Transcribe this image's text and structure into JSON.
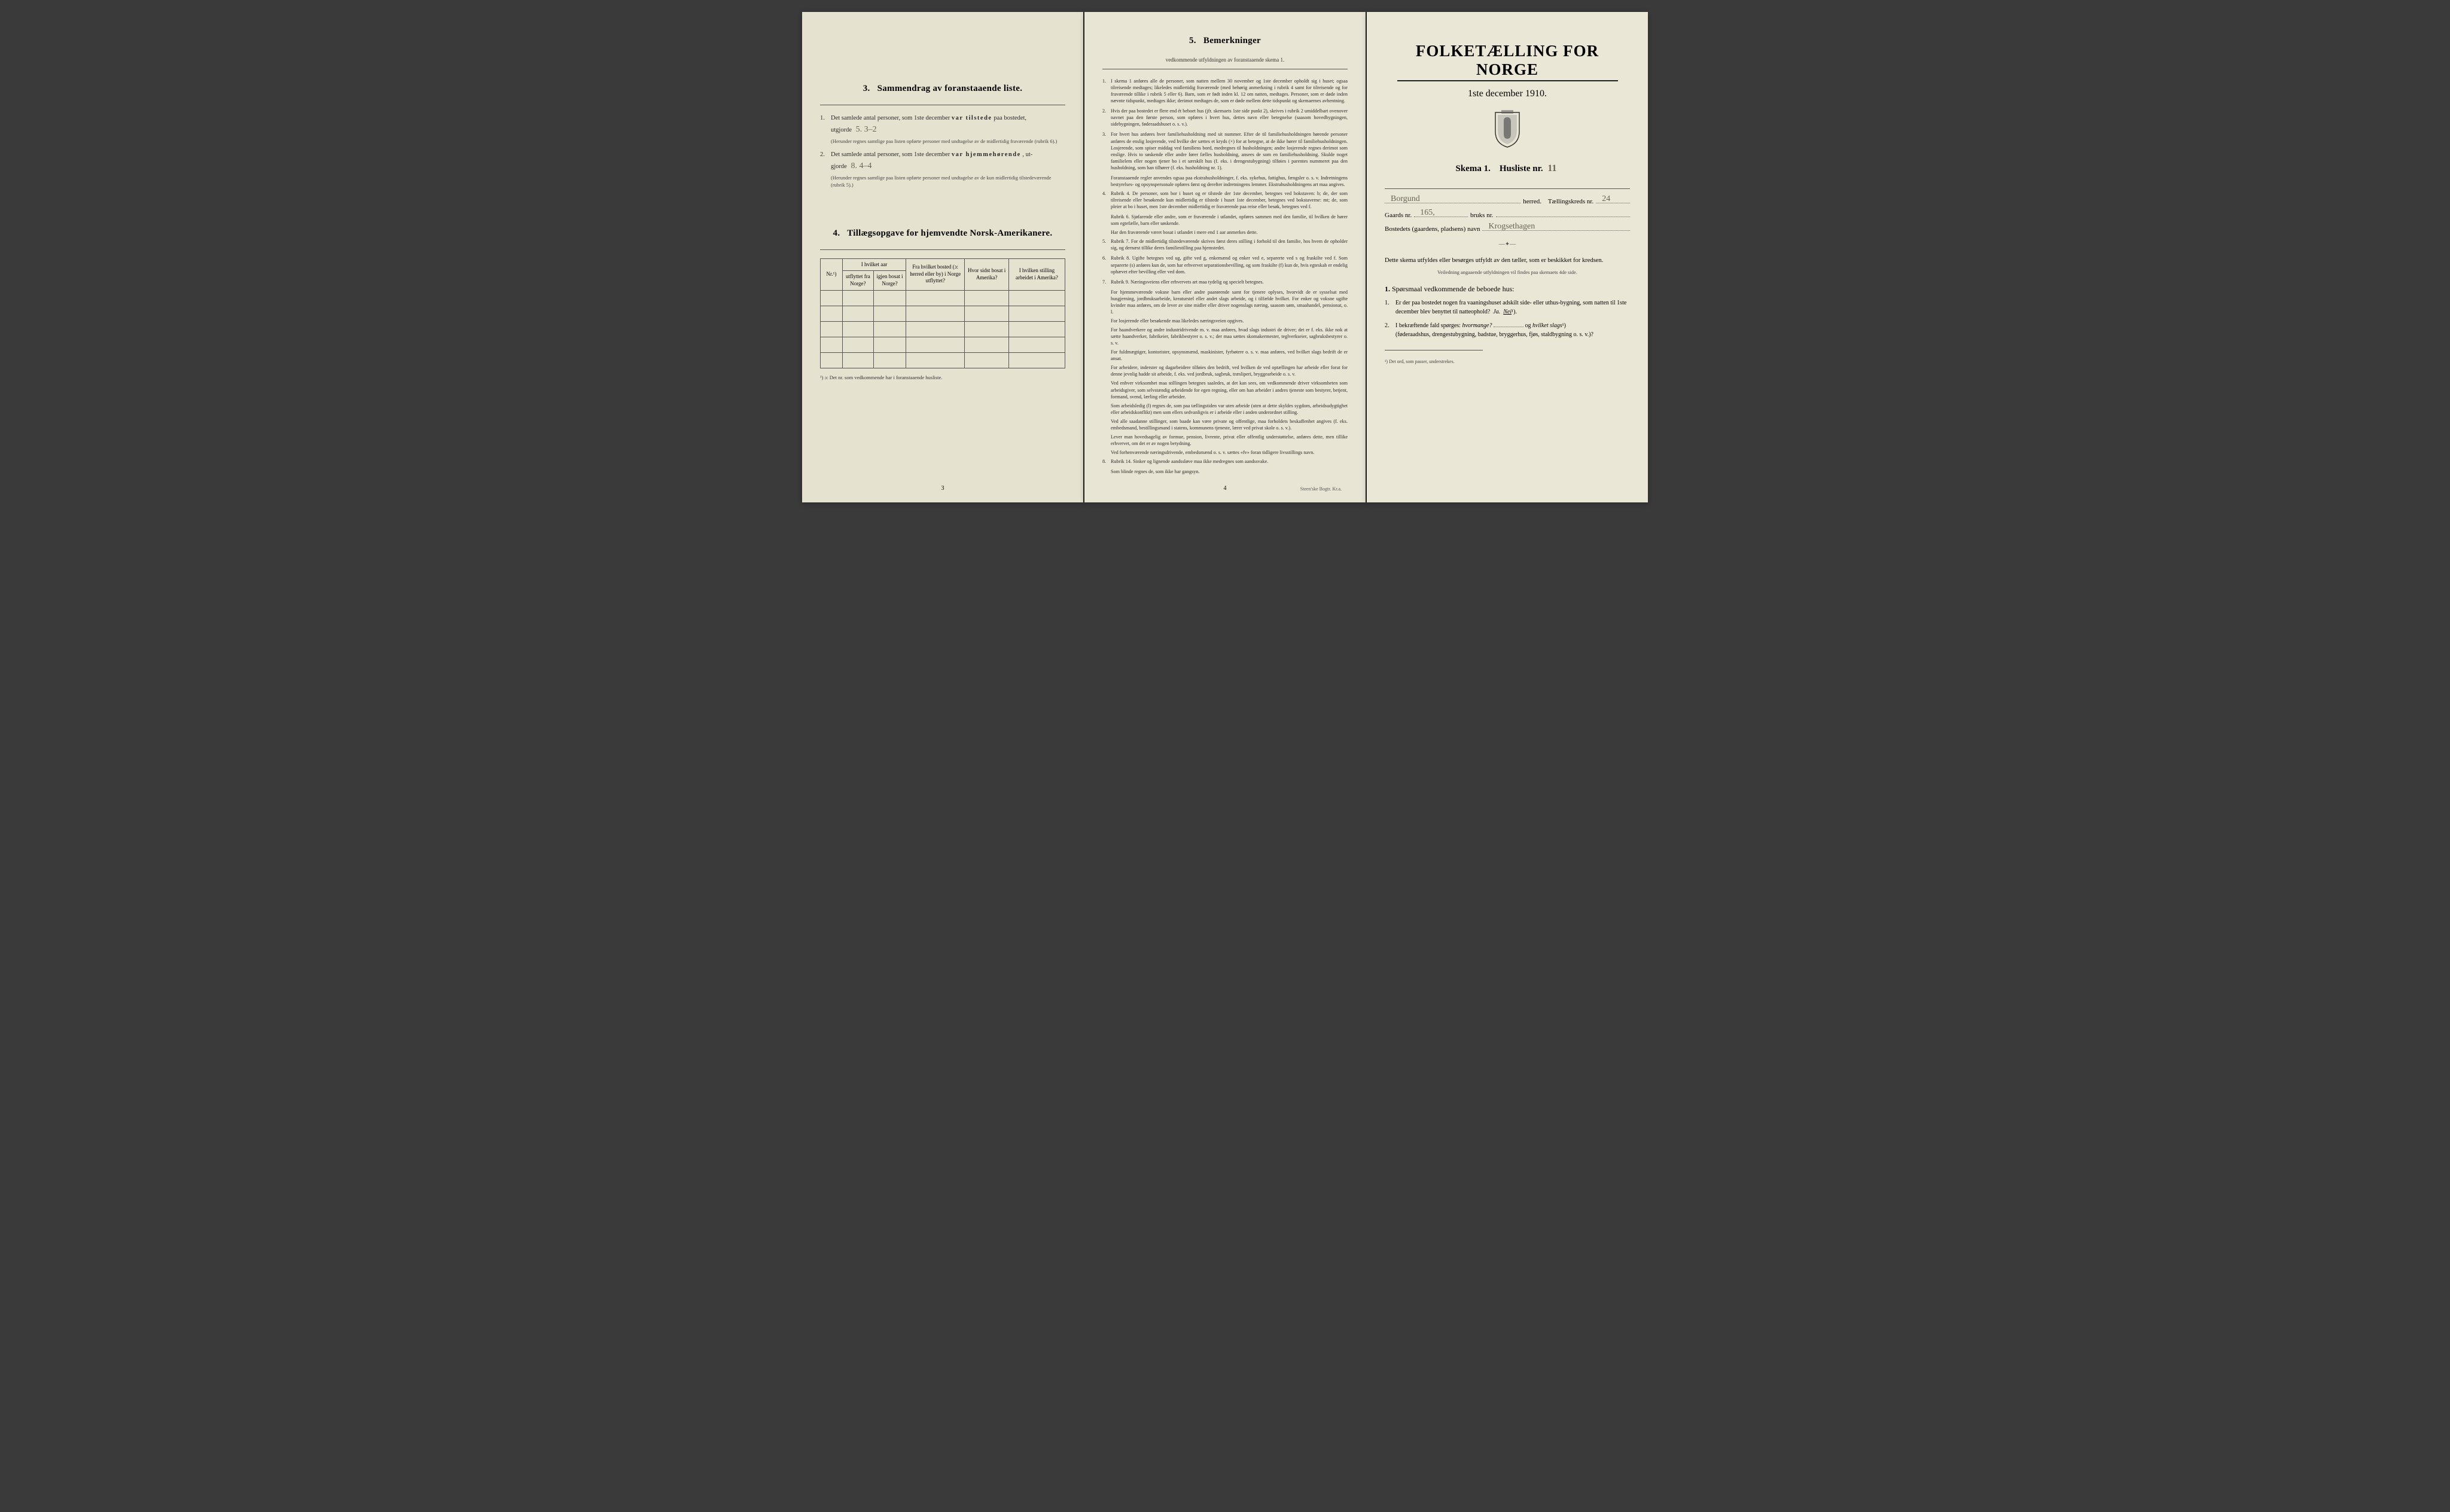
{
  "colors": {
    "paper": "#e8e4d4",
    "paper_mid": "#e9e5d5",
    "paper_right": "#ebe7d7",
    "ink": "#2a2a2a",
    "handwriting": "#6b6355",
    "rule": "#555555",
    "background": "#3a3a3a"
  },
  "typography": {
    "body_pt": 10.5,
    "fine_pt": 8.5,
    "remark_pt": 8.2,
    "title_pt": 27,
    "section_title_pt": 15
  },
  "left": {
    "section3": {
      "num": "3.",
      "title": "Sammendrag av foranstaaende liste.",
      "item1_num": "1.",
      "item1_text_a": "Det samlede antal personer, som 1ste december ",
      "item1_bold": "var tilstede",
      "item1_text_b": " paa bostedet,",
      "item1_text_c": "utgjorde ",
      "item1_fill": "5.   3–2",
      "item1_fine": "(Herunder regnes samtlige paa listen opførte personer med undtagelse av de midlertidig fraværende (rubrik 6).)",
      "item2_num": "2.",
      "item2_text_a": "Det samlede antal personer, som 1ste december ",
      "item2_bold": "var hjemmehørende",
      "item2_text_b": ", ut-",
      "item2_text_c": "gjorde ",
      "item2_fill": "8.   4–4",
      "item2_fine": "(Herunder regnes samtlige paa listen opførte personer med undtagelse av de kun midlertidig tilstedeværende (rubrik 5).)"
    },
    "section4": {
      "num": "4.",
      "title": "Tillægsopgave for hjemvendte Norsk-Amerikanere.",
      "headers": {
        "c1": "Nr.¹)",
        "c2": "I hvilket aar utflyttet fra Norge?",
        "c3": "Fra hvilket bosted (ɔ: herred eller by) i Norge utflyttet?",
        "c4": "Hvor sidst bosat i Amerika?",
        "c5": "I hvilken stilling arbeidet i Amerika?",
        "c2b": "igjen bosat i Norge?"
      },
      "rows": 5,
      "footnote": "¹) ɔ: Det nr. som vedkommende har i foranstaaende husliste."
    },
    "page_num": "3"
  },
  "middle": {
    "title_num": "5.",
    "title": "Bemerkninger",
    "subtitle": "vedkommende utfyldningen av foranstaaende skema 1.",
    "items": [
      {
        "n": "1.",
        "t": "I skema 1 anføres alle de personer, som natten mellem 30 november og 1ste december opholdt sig i huset; ogsaa tilreisende medtages; likeledes midlertidig fraværende (med behørig anmerkning i rubrik 4 samt for tilreisende og for fraværende tillike i rubrik 5 eller 6). Barn, som er født inden kl. 12 om natten, medtages. Personer, som er døde inden nævnte tidspunkt, medtages ikke; derimot medtages de, som er døde mellem dette tidspunkt og skemaernes avhentning."
      },
      {
        "n": "2.",
        "t": "Hvis der paa bostedet er flere end ét beboet hus (jfr. skemaets 1ste side punkt 2), skrives i rubrik 2 umiddelbart ovenover navnet paa den første person, som opføres i hvert hus, dettes navn eller betegnelse (saasom hovedbygningen, sidebygningen, føderaadshuset o. s. v.)."
      },
      {
        "n": "3.",
        "t": "For hvert hus anføres hver familiehusholdning med sit nummer. Efter de til familiehusholdningen hørende personer anføres de enslig losjerende, ved hvilke der sættes et kryds (×) for at betegne, at de ikke hører til familiehusholdningen. Losjerende, som spiser middag ved familiens bord, medregnes til husholdningen; andre losjerende regnes derimot som enslige. Hvis to søskende eller andre fører fælles husholdning, ansees de som en familiehusholdning. Skulde noget familielem eller nogen tjener bo i et særskilt hus (f. eks. i drengestubygning) tilføies i parentes nummeret paa den husholdning, som han tilhører (f. eks. husholdning nr. 1)."
      },
      {
        "n": "",
        "t": "Foranstaaende regler anvendes ogsaa paa ekstrahusholdninger, f. eks. sykehus, fattighus, fængsler o. s. v. Indretningens bestyrelses- og opsynspersonale opføres først og derefter indretningens lemmer. Ekstrahusholdningens art maa angives."
      },
      {
        "n": "4.",
        "t": "Rubrik 4. De personer, som bor i huset og er tilstede der 1ste december, betegnes ved bokstaven: b; de, der som tilreisende eller besøkende kun midlertidig er tilstede i huset 1ste december, betegnes ved bokstaverne: mt; de, som pleier at bo i huset, men 1ste december midlertidig er fraværende paa reise eller besøk, betegnes ved f."
      },
      {
        "n": "",
        "t": "Rubrik 6. Sjøfarende eller andre, som er fraværende i utlandet, opføres sammen med den familie, til hvilken de hører som egtefælle, barn eller søskende."
      },
      {
        "n": "",
        "t": "Har den fraværende været bosat i utlandet i mere end 1 aar anmerkes dette."
      },
      {
        "n": "5.",
        "t": "Rubrik 7. For de midlertidig tilstedeværende skrives først deres stilling i forhold til den familie, hos hvem de opholder sig, og dernæst tillike deres familiestilling paa hjemstedet."
      },
      {
        "n": "6.",
        "t": "Rubrik 8. Ugifte betegnes ved ug, gifte ved g, enkemænd og enker ved e, separerte ved s og fraskilte ved f. Som separerte (s) anføres kun de, som har erhvervet separationsbevilling, og som fraskilte (f) kun de, hvis egteskab er endelig ophævet efter bevilling eller ved dom."
      },
      {
        "n": "7.",
        "t": "Rubrik 9. Næringsveiens eller erhvervets art maa tydelig og specielt betegnes."
      },
      {
        "n": "",
        "t": "For hjemmeværende voksne barn eller andre paarørende samt for tjenere oplyses, hvorvidt de er sysselsat med husgjerning, jordbruksarbeide, kreaturstel eller andet slags arbeide, og i tilfælde hvilket. For enker og voksne ugifte kvinder maa anføres, om de lever av sine midler eller driver nogenslags næring, saasom søm, smaahandel, pensionat, o. l."
      },
      {
        "n": "",
        "t": "For losjerende eller besøkende maa likeledes næringsveien opgives."
      },
      {
        "n": "",
        "t": "For haandverkere og andre industridrivende m. v. maa anføres, hvad slags industri de driver; det er f. eks. ikke nok at sætte haandverker, fabrikeier, fabrikbestyrer o. s. v.; der maa sættes skomakermester, teglverkseier, sagbruksbestyrer o. s. v."
      },
      {
        "n": "",
        "t": "For fuldmægtiger, kontorister, opsynsmænd, maskinister, fyrbøtere o. s. v. maa anføres, ved hvilket slags bedrift de er ansat."
      },
      {
        "n": "",
        "t": "For arbeidere, inderster og dagarbeidere tilføies den bedrift, ved hvilken de ved optællingen har arbeide eller forut for denne jevnlig hadde sit arbeide, f. eks. ved jordbruk, sagbruk, træsliperi, bryggearbeide o. s. v."
      },
      {
        "n": "",
        "t": "Ved enhver virksomhet maa stillingen betegnes saaledes, at det kan sees, om vedkommende driver virksomheten som arbeidsgiver, som selvstændig arbeidende for egen regning, eller om han arbeider i andres tjeneste som bestyrer, betjent, formand, svend, lærling eller arbeider."
      },
      {
        "n": "",
        "t": "Som arbeidsledig (l) regnes de, som paa tællingstiden var uten arbeide (uten at dette skyldes sygdom, arbeidsudygtighet eller arbeidskonflikt) men som ellers sedvanligvis er i arbeide eller i anden underordnet stilling."
      },
      {
        "n": "",
        "t": "Ved alle saadanne stillinger, som baade kan være private og offentlige, maa forholdets beskaffenhet angives (f. eks. embedsmand, bestillingsmand i statens, kommunens tjeneste, lærer ved privat skole o. s. v.)."
      },
      {
        "n": "",
        "t": "Lever man hovedsagelig av formue, pension, livrente, privat eller offentlig understøttelse, anføres dette, men tillike erhvervet, om det er av nogen betydning."
      },
      {
        "n": "",
        "t": "Ved forhenværende næringsdrivende, embedsmænd o. s. v. sættes «fv» foran tidligere livsstillings navn."
      },
      {
        "n": "8.",
        "t": "Rubrik 14. Sinker og lignende aandssløve maa ikke medregnes som aandssvake."
      },
      {
        "n": "",
        "t": "Som blinde regnes de, som ikke har gangsyn."
      }
    ],
    "page_num": "4",
    "printer": "Steen'ske Bogtr. Kr.a."
  },
  "right": {
    "main_title": "FOLKETÆLLING FOR NORGE",
    "sub_title": "1ste december 1910.",
    "skema_label": "Skema 1.",
    "husliste_label": "Husliste nr.",
    "husliste_val": "11",
    "herred_val": "Borgund",
    "herred_label": "herred.",
    "kreds_label": "Tællingskreds nr.",
    "kreds_val": "24",
    "gaard_label": "Gaards nr.",
    "gaard_val": "165,",
    "bruk_label": "bruks nr.",
    "bruk_val": "",
    "bosted_label": "Bostedets (gaardens, pladsens) navn",
    "bosted_val": "Krogsethagen",
    "intro": "Dette skema utfyldes eller besørges utfyldt av den tæller, som er beskikket for kredsen.",
    "veiledning": "Veiledning angaaende utfyldningen vil findes paa skemaets 4de side.",
    "q_head_num": "1.",
    "q_head": "Spørsmaal vedkommende de beboede hus:",
    "q1_num": "1.",
    "q1_text": "Er der paa bostedet nogen fra vaaningshuset adskilt side- eller uthus-bygning, som natten til 1ste december blev benyttet til natteophold?",
    "q1_ja": "Ja.",
    "q1_nei": "Nei",
    "q1_sup": "¹).",
    "q2_num": "2.",
    "q2_text_a": "I bekræftende fald spørges: ",
    "q2_em1": "hvormange?",
    "q2_text_b": " og ",
    "q2_em2": "hvilket slags",
    "q2_sup": "¹)",
    "q2_text_c": "(føderaadshus, drengestubygning, badstue, bryggerhus, fjøs, staldbygning o. s. v.)?",
    "footnote": "¹) Det ord, som passer, understrekes."
  }
}
